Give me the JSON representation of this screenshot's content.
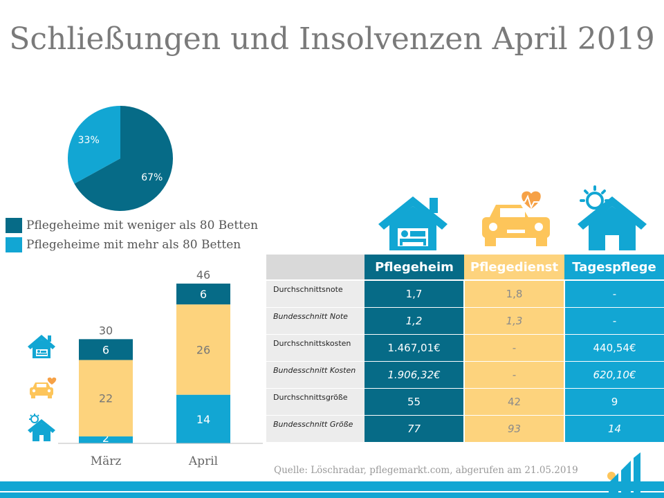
{
  "title": "Schließungen und Insolvenzen April 2019",
  "colors": {
    "dark": "#066b87",
    "yellow": "#fdd37d",
    "light": "#12a6d3",
    "grey": "#d9d9d9"
  },
  "chart_data": [
    {
      "type": "pie",
      "slices": [
        {
          "label": "Pflegeheime mit weniger als 80 Betten",
          "value": 67,
          "text": "67%",
          "color": "#066b87"
        },
        {
          "label": "Pflegeheime mit mehr als 80 Betten",
          "value": 33,
          "text": "33%",
          "color": "#12a6d3"
        }
      ]
    },
    {
      "type": "bar",
      "stacked": true,
      "categories": [
        "März",
        "April"
      ],
      "totals": [
        "30",
        "46"
      ],
      "series": [
        {
          "name": "Tagespflege",
          "color": "#12a6d3",
          "values": [
            2,
            14
          ]
        },
        {
          "name": "Pflegedienst",
          "color": "#fdd37d",
          "values": [
            22,
            26
          ]
        },
        {
          "name": "Pflegeheim",
          "color": "#066b87",
          "values": [
            6,
            6
          ]
        }
      ],
      "ylim": [
        0,
        46
      ]
    }
  ],
  "table": {
    "headers": [
      "Pflegeheim",
      "Pflegedienst",
      "Tagespflege"
    ],
    "rows": [
      {
        "label": "Durchschnittsnote",
        "values": [
          "1,7",
          "1,8",
          "-"
        ]
      },
      {
        "label": "Bundesschnitt Note",
        "values": [
          "1,2",
          "1,3",
          "-"
        ]
      },
      {
        "label": "Durchschnittskosten",
        "values": [
          "1.467,01€",
          "-",
          "440,54€"
        ]
      },
      {
        "label": "Bundesschnitt Kosten",
        "values": [
          "1.906,32€",
          "-",
          "620,10€"
        ]
      },
      {
        "label": "Durchschnittsgröße",
        "values": [
          "55",
          "42",
          "9"
        ]
      },
      {
        "label": "Bundesschnitt Größe",
        "values": [
          "77",
          "93",
          "14"
        ]
      }
    ]
  },
  "source": "Quelle: Löschradar, pflegemarkt.com, abgerufen am 21.05.2019",
  "icons": [
    "house-bed-icon",
    "car-heart-icon",
    "house-sun-icon"
  ]
}
